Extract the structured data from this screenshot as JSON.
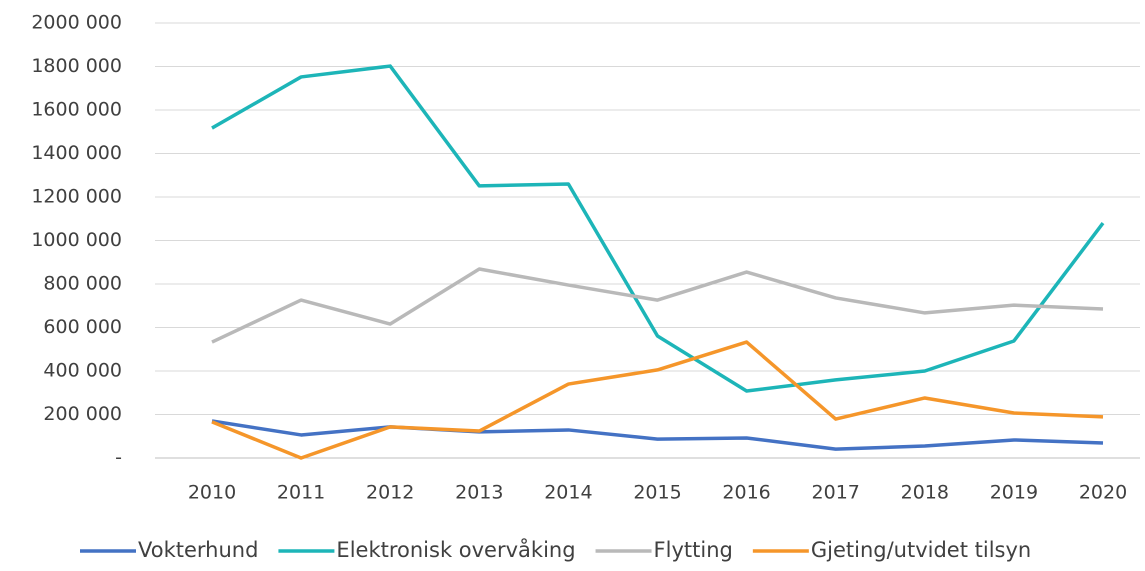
{
  "chart_data": {
    "type": "line",
    "categories": [
      "2010",
      "2011",
      "2012",
      "2013",
      "2014",
      "2015",
      "2016",
      "2017",
      "2018",
      "2019",
      "2020"
    ],
    "series": [
      {
        "name": "Vokterhund",
        "color": "#4472c4",
        "values": [
          170000,
          106000,
          143000,
          120000,
          129000,
          87000,
          92000,
          41000,
          55000,
          83000,
          69000
        ]
      },
      {
        "name": "Elektronisk overvåking",
        "color": "#1db5b8",
        "values": [
          1517000,
          1752000,
          1802000,
          1251000,
          1260000,
          561000,
          308000,
          359000,
          400000,
          538000,
          1080000
        ]
      },
      {
        "name": "Flytting",
        "color": "#b9b9b9",
        "values": [
          533000,
          726000,
          616000,
          869000,
          795000,
          726000,
          855000,
          736000,
          667000,
          703000,
          685000
        ]
      },
      {
        "name": "Gjeting/utvidet tilsyn",
        "color": "#f5962a",
        "values": [
          166000,
          0,
          143000,
          124000,
          340000,
          405000,
          533000,
          179000,
          276000,
          207000,
          189000
        ]
      }
    ],
    "ylim": [
      0,
      2000000
    ],
    "yticks": [
      {
        "value": 0,
        "label": "-"
      },
      {
        "value": 200000,
        "label": "200 000"
      },
      {
        "value": 400000,
        "label": "400 000"
      },
      {
        "value": 600000,
        "label": "600 000"
      },
      {
        "value": 800000,
        "label": "800 000"
      },
      {
        "value": 1000000,
        "label": "1000 000"
      },
      {
        "value": 1200000,
        "label": "1200 000"
      },
      {
        "value": 1400000,
        "label": "1400 000"
      },
      {
        "value": 1600000,
        "label": "1600 000"
      },
      {
        "value": 1800000,
        "label": "1800 000"
      },
      {
        "value": 2000000,
        "label": "2000 000"
      }
    ],
    "grid": true,
    "legend": "bottom"
  }
}
